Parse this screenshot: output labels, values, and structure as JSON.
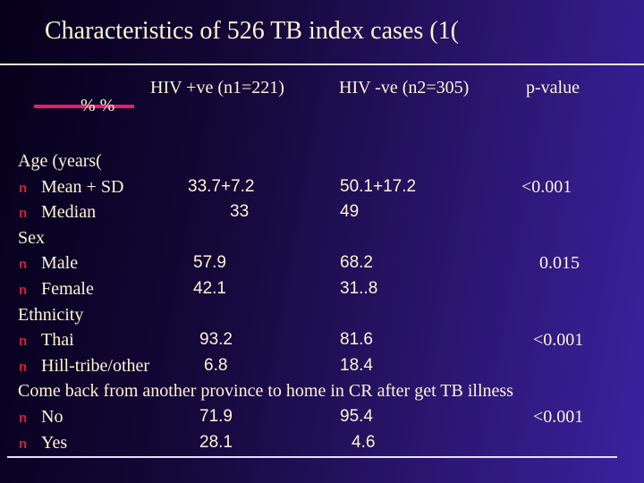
{
  "header": {
    "title": "Characteristics of 526 TB index cases (1("
  },
  "table": {
    "unit_label": "% %",
    "columns": [
      "HIV +ve (n1=221)",
      "HIV -ve (n2=305)",
      "p-value"
    ],
    "rows": [
      {
        "label": "Age (years("
      },
      {
        "bullet": "n",
        "label": "Mean + SD",
        "cells": [
          "33.7+7.2",
          "50.1+17.2",
          "<0.001"
        ]
      },
      {
        "bullet": "n",
        "label": "Median",
        "cells": [
          "33",
          "49"
        ]
      },
      {
        "label": "Sex"
      },
      {
        "bullet": "n",
        "label": "Male",
        "cells": [
          "57.9",
          "68.2",
          "0.015"
        ]
      },
      {
        "bullet": "n",
        "label": "Female",
        "cells": [
          "42.1",
          "31..8"
        ]
      },
      {
        "label": "Ethnicity"
      },
      {
        "bullet": "n",
        "label": "Thai",
        "cells": [
          "93.2",
          "81.6",
          "<0.001"
        ]
      },
      {
        "bullet": "n",
        "label": "Hill-tribe/other",
        "cells": [
          "6.8",
          "18.4"
        ]
      },
      {
        "label": "Come back  from another province to home in CR after get TB illness"
      },
      {
        "bullet": "n",
        "label": "No",
        "cells": [
          "71.9",
          "95.4",
          "<0.001"
        ]
      },
      {
        "bullet": "n",
        "label": "Yes",
        "cells": [
          "28.1",
          "4.6"
        ]
      }
    ]
  }
}
